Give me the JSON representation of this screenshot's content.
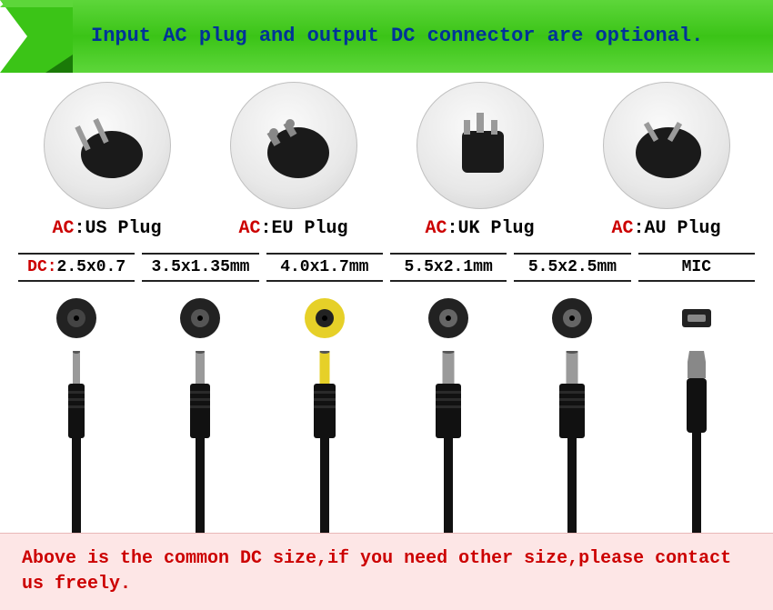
{
  "banner": {
    "text": "Input AC plug and output DC connector are optional.",
    "bg_gradient": [
      "#5dd63a",
      "#3bc417",
      "#5dd63a"
    ],
    "text_color": "#003399",
    "ribbon_dark": "#1a7a08"
  },
  "plugs": {
    "prefix": "AC",
    "prefix_color": "#cc0000",
    "sep": ":",
    "items": [
      {
        "label": "US Plug",
        "shape": "us"
      },
      {
        "label": "EU Plug",
        "shape": "eu"
      },
      {
        "label": "UK Plug",
        "shape": "uk"
      },
      {
        "label": "AU Plug",
        "shape": "au"
      }
    ]
  },
  "dc": {
    "first_prefix": "DC",
    "first_prefix_color": "#cc0000",
    "items": [
      {
        "label": "2.5x0.7",
        "tip": "barrel",
        "tip_color": "#222",
        "inner": "#444",
        "jack_width": 8,
        "body_width": 18
      },
      {
        "label": "3.5x1.35mm",
        "tip": "barrel",
        "tip_color": "#222",
        "inner": "#555",
        "jack_width": 10,
        "body_width": 22
      },
      {
        "label": "4.0x1.7mm",
        "tip": "barrel",
        "tip_color": "#e6d028",
        "inner": "#222",
        "jack_width": 11,
        "body_width": 24
      },
      {
        "label": "5.5x2.1mm",
        "tip": "barrel",
        "tip_color": "#222",
        "inner": "#666",
        "jack_width": 13,
        "body_width": 28
      },
      {
        "label": "5.5x2.5mm",
        "tip": "barrel",
        "tip_color": "#222",
        "inner": "#666",
        "jack_width": 13,
        "body_width": 28
      },
      {
        "label": "MIC",
        "tip": "micro",
        "tip_color": "#222",
        "inner": "#888",
        "jack_width": 16,
        "body_width": 22
      }
    ]
  },
  "footer": {
    "text": "Above is the common DC size,if you need other size,please contact us freely.",
    "bg": "#fde6e6",
    "text_color": "#cc0000"
  }
}
